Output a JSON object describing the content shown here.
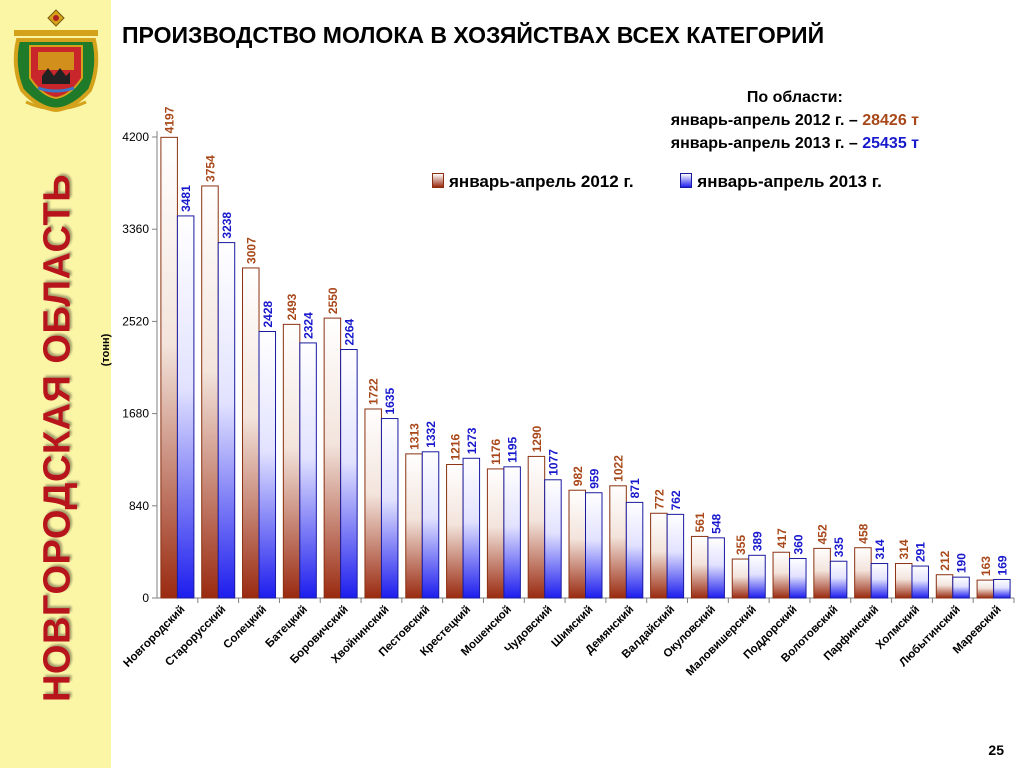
{
  "sidebar": {
    "vertical_title": "НОВГОРОДСКАЯ ОБЛАСТЬ"
  },
  "header": {
    "title": "ПРОИЗВОДСТВО МОЛОКА В ХОЗЯЙСТВАХ ВСЕХ КАТЕГОРИЙ"
  },
  "summary": {
    "heading": "По области:",
    "line1_prefix": "январь-апрель 2012 г. – ",
    "line1_value": "28426 т",
    "line2_prefix": "январь-апрель 2013 г. – ",
    "line2_value": "25435 т"
  },
  "footer": {
    "page_number": "25"
  },
  "colors": {
    "series_2012": "#a8481a",
    "series_2013": "#1818cc",
    "sidebar_bg": "#fbf5a6",
    "vertical_title": "#b8141c"
  },
  "chart_data": {
    "type": "bar",
    "ylabel": "(тонн)",
    "ylim": [
      0,
      4200
    ],
    "yticks": [
      0,
      840,
      1680,
      2520,
      3360,
      4200
    ],
    "grid": false,
    "legend_position": "top-right",
    "categories": [
      "Новгородский",
      "Старорусский",
      "Солецкий",
      "Батецкий",
      "Боровичский",
      "Хвойнинский",
      "Пестовский",
      "Крестецкий",
      "Мошенской",
      "Чудовский",
      "Шимский",
      "Демянский",
      "Валдайский",
      "Окуловский",
      "Маловишерский",
      "Поддорский",
      "Волотовский",
      "Парфинский",
      "Холмский",
      "Любытинский",
      "Маревский"
    ],
    "series": [
      {
        "name": "январь-апрель 2012 г.",
        "values": [
          4197,
          3754,
          3007,
          2493,
          2550,
          1722,
          1313,
          1216,
          1176,
          1290,
          982,
          1022,
          772,
          561,
          355,
          417,
          452,
          458,
          314,
          212,
          163
        ]
      },
      {
        "name": "январь-апрель 2013 г.",
        "values": [
          3481,
          3238,
          2428,
          2324,
          2264,
          1635,
          1332,
          1273,
          1195,
          1077,
          959,
          871,
          762,
          548,
          389,
          360,
          335,
          314,
          291,
          190,
          169
        ]
      }
    ]
  }
}
